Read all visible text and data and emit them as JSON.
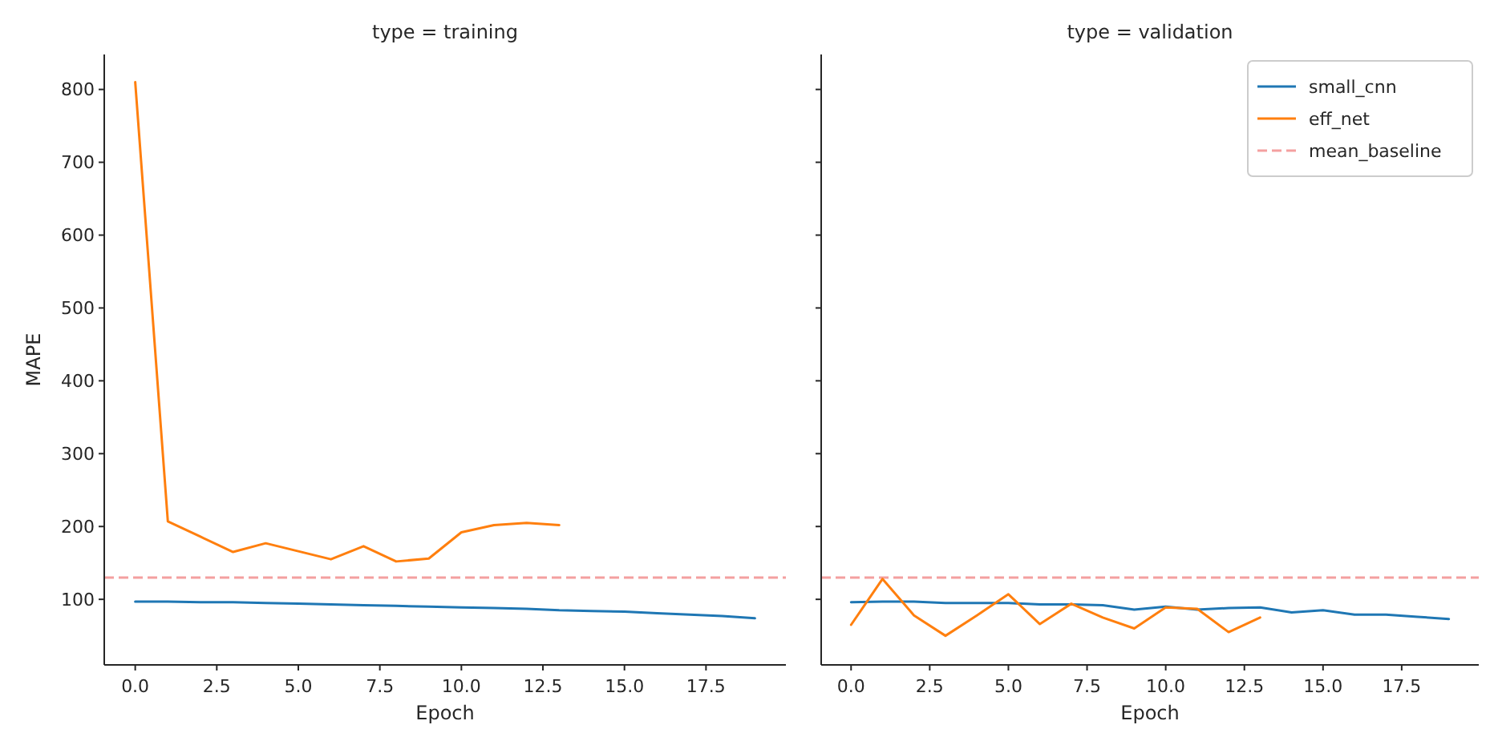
{
  "chart_data": [
    {
      "type": "line",
      "title": "type = training",
      "xlabel": "Epoch",
      "ylabel": "MAPE",
      "x": [
        0,
        1,
        2,
        3,
        4,
        5,
        6,
        7,
        8,
        9,
        10,
        11,
        12,
        13,
        14,
        15,
        16,
        17,
        18,
        19
      ],
      "series": [
        {
          "color": "#1f77b4",
          "values": [
            97,
            97,
            96,
            96,
            95,
            94,
            93,
            92,
            91,
            90,
            89,
            88,
            87,
            85,
            84,
            83,
            81,
            79,
            77,
            74
          ]
        },
        {
          "color": "#ff7f0e",
          "x": [
            0,
            1,
            2,
            3,
            4,
            5,
            6,
            7,
            8,
            9,
            10,
            11,
            12,
            13
          ],
          "values": [
            810,
            207,
            186,
            165,
            177,
            166,
            155,
            173,
            152,
            156,
            192,
            202,
            205,
            202
          ]
        }
      ],
      "xlim": [
        -0.95,
        19.95
      ],
      "xticks": [
        {
          "value": 0,
          "label": "0.0"
        },
        2.5,
        {
          "value": 5,
          "label": "5.0"
        },
        7.5,
        {
          "value": 10,
          "label": "10.0"
        },
        12.5,
        {
          "value": 15,
          "label": "15.0"
        },
        17.5
      ],
      "ylim": [
        10,
        848
      ],
      "yticks": [
        100,
        200,
        300,
        400,
        500,
        600,
        700,
        800
      ],
      "ref_lines": [
        {
          "axis": "y",
          "value": 130,
          "color": "#f4a0a0",
          "line_style": "dashed"
        }
      ]
    },
    {
      "type": "line",
      "title": "type = validation",
      "xlabel": "Epoch",
      "x": [
        0,
        1,
        2,
        3,
        4,
        5,
        6,
        7,
        8,
        9,
        10,
        11,
        12,
        13,
        14,
        15,
        16,
        17,
        18,
        19
      ],
      "series": [
        {
          "name": "small_cnn",
          "color": "#1f77b4",
          "values": [
            96,
            97,
            97,
            95,
            95,
            95,
            93,
            93,
            92,
            86,
            90,
            86,
            88,
            89,
            82,
            85,
            79,
            79,
            76,
            73
          ]
        },
        {
          "name": "eff_net",
          "color": "#ff7f0e",
          "x": [
            0,
            1,
            2,
            3,
            4,
            5,
            6,
            7,
            8,
            9,
            10,
            11,
            12,
            13
          ],
          "values": [
            65,
            128,
            78,
            50,
            78,
            107,
            66,
            94,
            75,
            60,
            89,
            87,
            55,
            75
          ]
        }
      ],
      "xlim": [
        -0.95,
        19.95
      ],
      "xticks": [
        {
          "value": 0,
          "label": "0.0"
        },
        2.5,
        {
          "value": 5,
          "label": "5.0"
        },
        7.5,
        {
          "value": 10,
          "label": "10.0"
        },
        12.5,
        {
          "value": 15,
          "label": "15.0"
        },
        17.5
      ],
      "ylim": [
        10,
        848
      ],
      "yticks": [
        100,
        200,
        300,
        400,
        500,
        600,
        700,
        800
      ],
      "tick_labels": "x",
      "legend": "top right",
      "ref_lines": [
        {
          "axis": "y",
          "value": 130,
          "label": "mean_baseline",
          "color": "#f4a0a0",
          "line_style": "dashed"
        }
      ]
    }
  ]
}
